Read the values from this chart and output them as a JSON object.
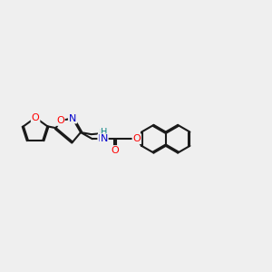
{
  "bg_color": "#efefef",
  "line_color": "#1a1a1a",
  "bond_width": 1.5,
  "atom_colors": {
    "O": "#ff0000",
    "N": "#0000cc",
    "NH": "#008080",
    "C": "#1a1a1a"
  },
  "font_size": 8.5,
  "figsize": [
    3.0,
    3.0
  ],
  "dpi": 100,
  "xlim": [
    0,
    14
  ],
  "ylim": [
    0,
    14
  ]
}
